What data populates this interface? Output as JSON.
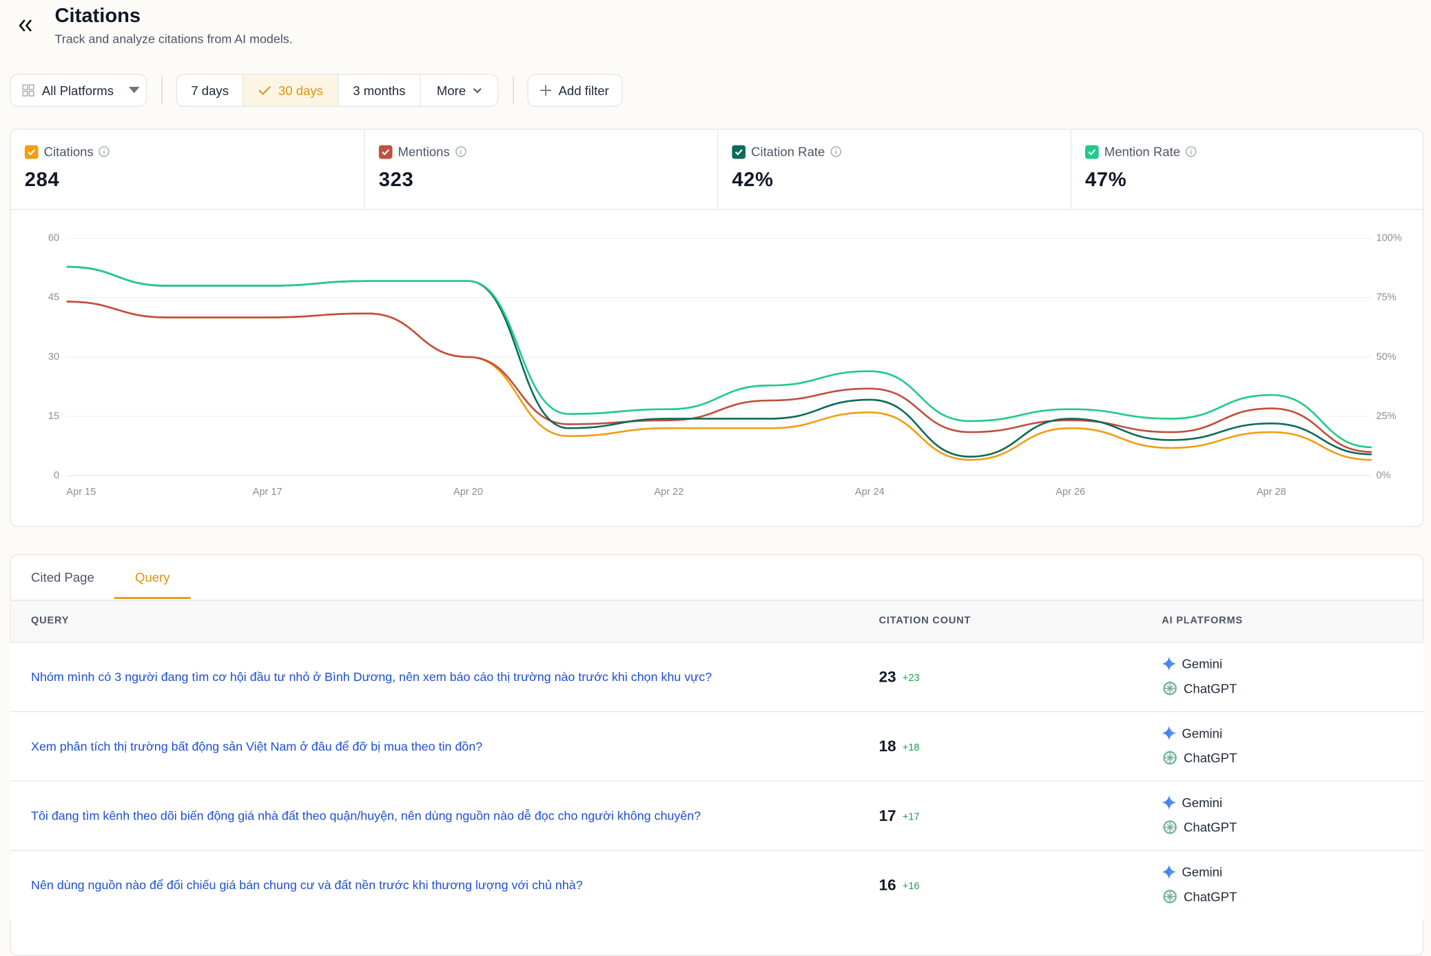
{
  "header": {
    "title": "Citations",
    "subtitle": "Track and analyze citations from AI models."
  },
  "filters": {
    "platform": "All Platforms",
    "ranges": [
      "7 days",
      "30 days",
      "3 months",
      "More"
    ],
    "selected_range": 1,
    "add_filter": "Add filter"
  },
  "chart_data": {
    "type": "line",
    "categories": [
      "Apr 15",
      null,
      "Apr 17",
      null,
      "Apr 20",
      null,
      "Apr 22",
      null,
      "Apr 24",
      null,
      "Apr 26",
      null,
      "Apr 28",
      null
    ],
    "series": [
      {
        "name": "Citations",
        "total": "284",
        "color": "#f29d12",
        "axis": "y",
        "values": [
          44,
          40,
          40,
          41,
          30,
          10,
          12,
          12,
          16,
          4,
          12,
          7,
          11,
          4
        ]
      },
      {
        "name": "Mentions",
        "total": "323",
        "color": "#c0503f",
        "axis": "y",
        "values": [
          44,
          40,
          40,
          41,
          30,
          13,
          14,
          19,
          22,
          11,
          14,
          11,
          17,
          6
        ]
      },
      {
        "name": "Citation Rate",
        "total": "42%",
        "color": "#0e6b5a",
        "axis": "y2",
        "values": [
          88,
          80,
          80,
          82,
          82,
          20,
          24,
          24,
          32,
          8,
          24,
          15,
          22,
          9
        ]
      },
      {
        "name": "Mention Rate",
        "total": "47%",
        "color": "#1fcb8b",
        "axis": "y2",
        "values": [
          88,
          80,
          80,
          82,
          82,
          26,
          28,
          38,
          44,
          23,
          28,
          24,
          34,
          12
        ]
      }
    ],
    "ylim": [
      0,
      60
    ],
    "yticks": [
      0,
      15,
      30,
      45,
      60
    ],
    "y2lim": [
      0,
      100
    ],
    "y2ticks": [
      {
        "value": 0,
        "label": "0%"
      },
      {
        "value": 25,
        "label": "25%"
      },
      {
        "value": 50,
        "label": "50%"
      },
      {
        "value": 75,
        "label": "75%"
      },
      {
        "value": 100,
        "label": "100%"
      }
    ],
    "grid": true
  },
  "table": {
    "tabs": [
      "Cited Page",
      "Query"
    ],
    "active_tab": 1,
    "columns": [
      "QUERY",
      "CITATION COUNT",
      "AI PLATFORMS"
    ],
    "rows": [
      {
        "query": "Nhóm mình có 3 người đang tìm cơ hội đầu tư nhỏ ở Bình Dương, nên xem báo cáo thị trường nào trước khi chọn khu vực?",
        "count": "23",
        "change": "+23",
        "platforms": [
          "Gemini",
          "ChatGPT"
        ]
      },
      {
        "query": "Xem phân tích thị trường bất động sản Việt Nam ở đâu để đỡ bị mua theo tin đồn?",
        "count": "18",
        "change": "+18",
        "platforms": [
          "Gemini",
          "ChatGPT"
        ]
      },
      {
        "query": "Tôi đang tìm kênh theo dõi biến động giá nhà đất theo quận/huyện, nên dùng nguồn nào dễ đọc cho người không chuyên?",
        "count": "17",
        "change": "+17",
        "platforms": [
          "Gemini",
          "ChatGPT"
        ]
      },
      {
        "query": "Nên dùng nguồn nào để đối chiếu giá bán chung cư và đất nền trước khi thương lượng với chủ nhà?",
        "count": "16",
        "change": "+16",
        "platforms": [
          "Gemini",
          "ChatGPT"
        ]
      }
    ]
  }
}
